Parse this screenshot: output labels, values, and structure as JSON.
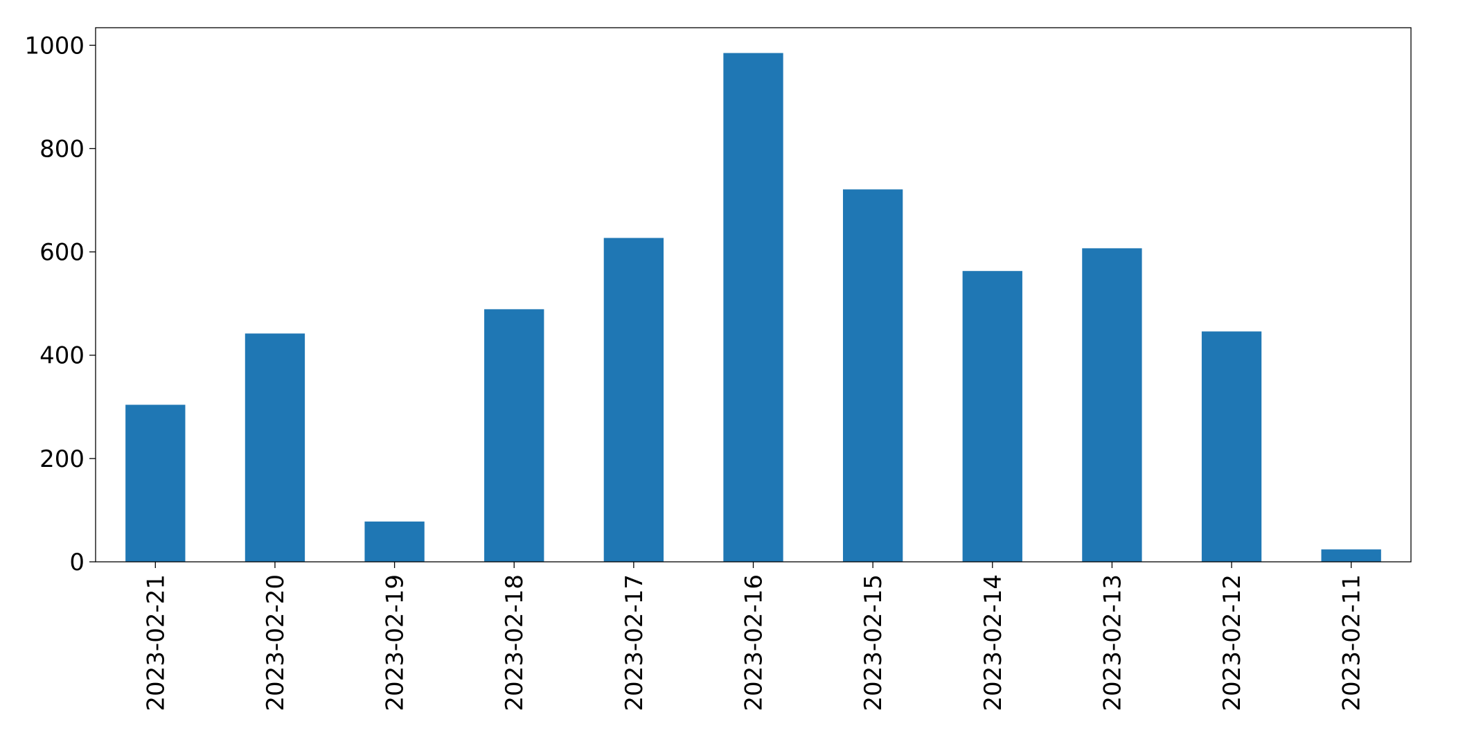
{
  "chart_data": {
    "type": "bar",
    "categories": [
      "2023-02-21",
      "2023-02-20",
      "2023-02-19",
      "2023-02-18",
      "2023-02-17",
      "2023-02-16",
      "2023-02-15",
      "2023-02-14",
      "2023-02-13",
      "2023-02-12",
      "2023-02-11"
    ],
    "values": [
      304,
      442,
      78,
      489,
      627,
      985,
      721,
      563,
      607,
      446,
      24
    ],
    "color": "#1f77b4",
    "ylim": [
      0,
      1034
    ],
    "yticks": [
      0,
      200,
      400,
      600,
      800,
      1000
    ],
    "grid": false
  }
}
